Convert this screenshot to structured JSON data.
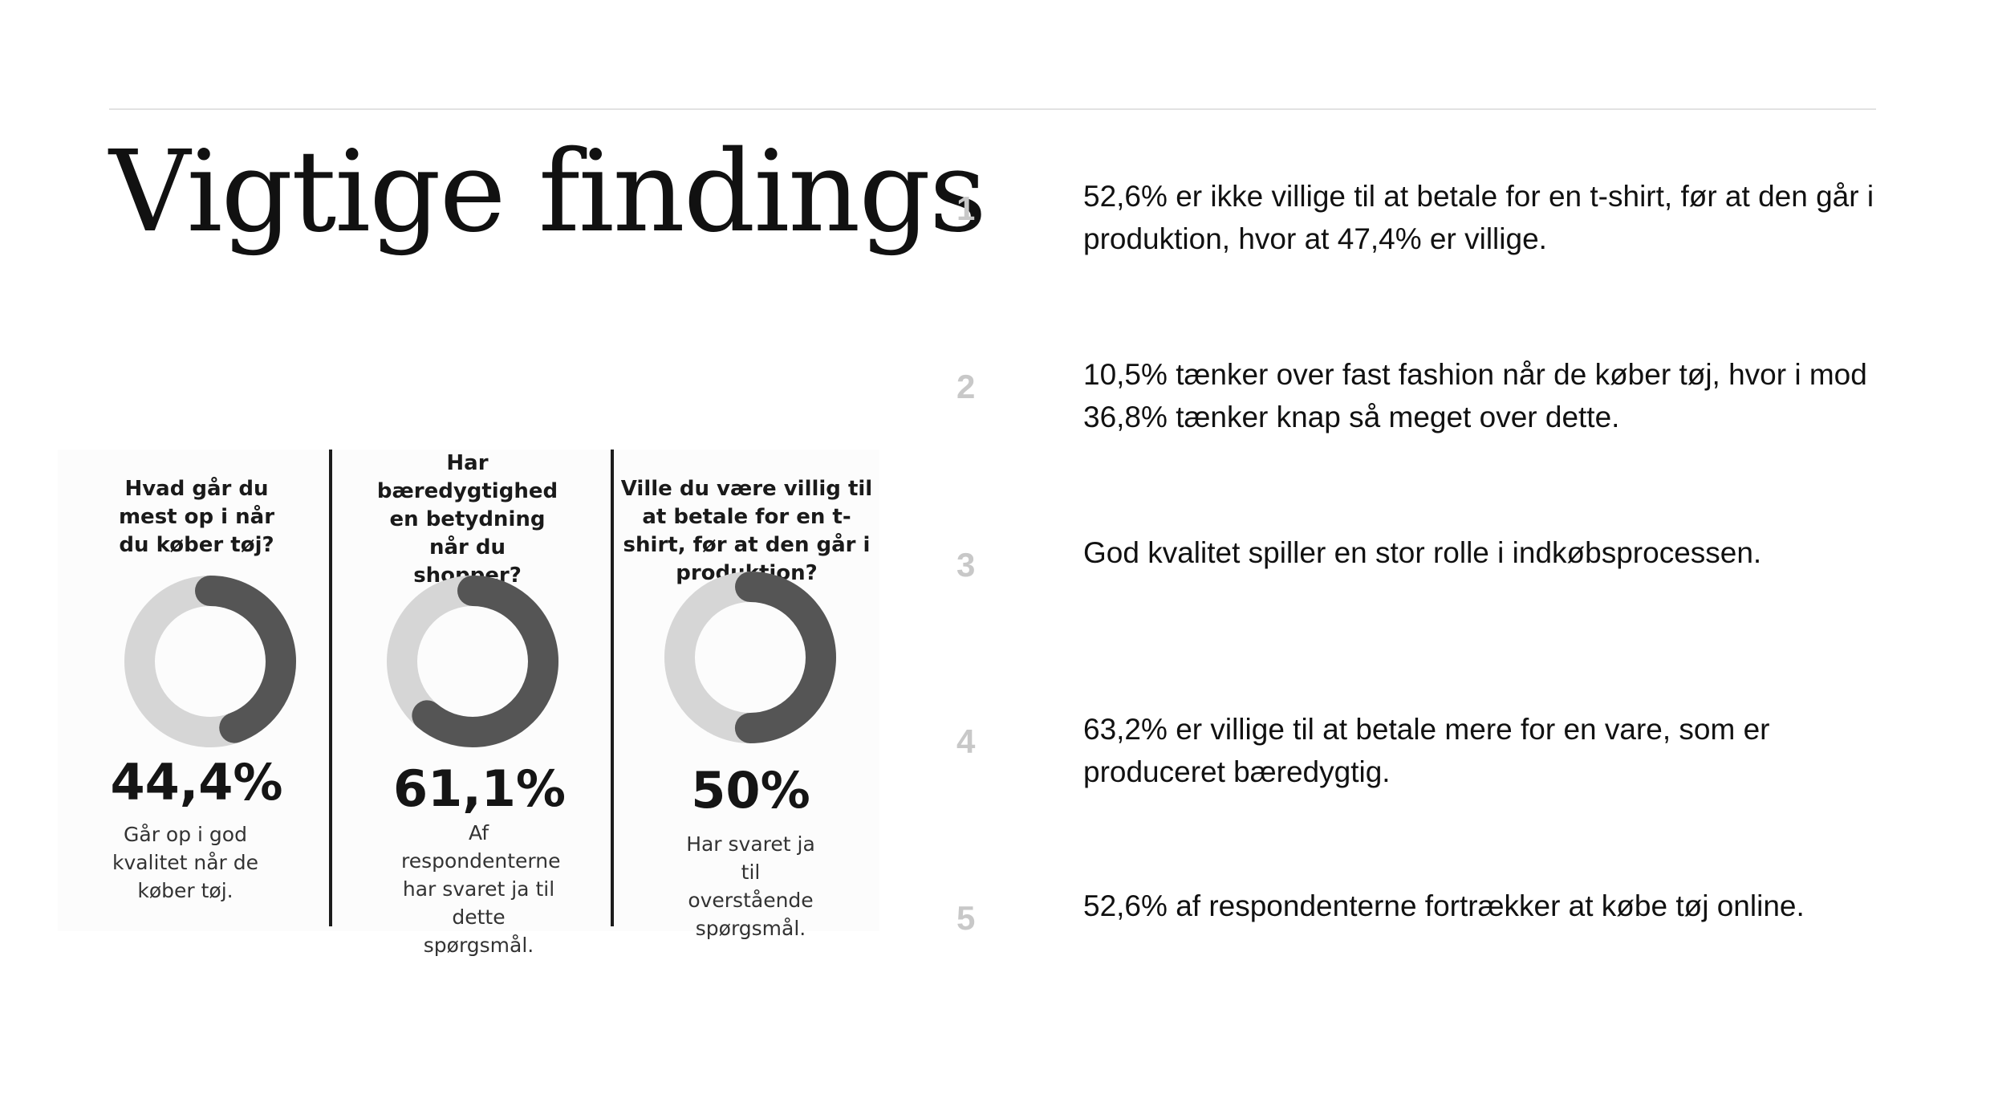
{
  "page": {
    "title": "Vigtige findings"
  },
  "findings": [
    {
      "number": "1",
      "text": "52,6% er ikke villige til at betale for en t-shirt, før at den går i produktion, hvor at 47,4% er villige."
    },
    {
      "number": "2",
      "text": "10,5% tænker over fast fashion når de køber tøj, hvor i mod 36,8% tænker knap så meget over dette."
    },
    {
      "number": "3",
      "text": "God kvalitet spiller en stor rolle i indkøbsprocessen."
    },
    {
      "number": "4",
      "text": "63,2% er villige til at betale mere for en vare, som er produceret bæredygtig."
    },
    {
      "number": "5",
      "text": "52,6% af respondenterne fortrækker at købe tøj online."
    }
  ],
  "colors": {
    "ring_track": "#d6d6d6",
    "ring_fill": "#555555",
    "number": "#c8c8c8"
  },
  "chart_data": [
    {
      "type": "pie",
      "variant": "donut",
      "question": "Hvad går du mest op i når du køber tøj?",
      "value": 44.4,
      "value_label": "44,4%",
      "caption": "Går op i god kvalitet når de køber tøj."
    },
    {
      "type": "pie",
      "variant": "donut",
      "question": "Har bæredygtighed en betydning når du shopper?",
      "value": 61.1,
      "value_label": "61,1%",
      "caption": "Af respondenterne har svaret ja til dette spørgsmål."
    },
    {
      "type": "pie",
      "variant": "donut",
      "question": "Ville du være villig til at betale for en t-shirt, før at den går i produktion?",
      "value": 50,
      "value_label": "50%",
      "caption": "Har svaret ja til overstående spørgsmål."
    }
  ]
}
